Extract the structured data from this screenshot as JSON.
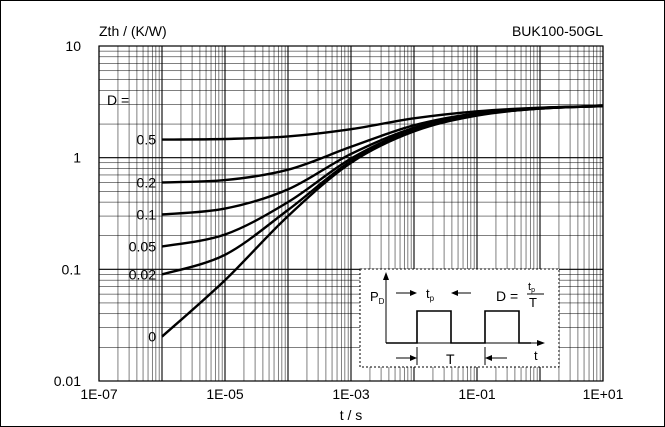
{
  "chart_data": {
    "type": "line",
    "title": "BUK100-50GL",
    "ylabel": "Zth / (K/W)",
    "xlabel": "t / s",
    "x_scale": "log",
    "y_scale": "log",
    "xlim": [
      1e-07,
      10
    ],
    "ylim": [
      0.01,
      10
    ],
    "x_tick_labels": [
      "1E-07",
      "1E-05",
      "1E-03",
      "1E-01",
      "1E+01"
    ],
    "y_tick_labels": [
      "10",
      "1",
      "0.1",
      "0.01"
    ],
    "grid": true,
    "legend_title": "D =",
    "series": [
      {
        "name": "0.5",
        "x": [
          1e-06,
          1e-05,
          0.0001,
          0.001,
          0.01,
          0.1,
          1,
          10
        ],
        "y": [
          1.45,
          1.47,
          1.55,
          1.8,
          2.25,
          2.6,
          2.8,
          2.9
        ]
      },
      {
        "name": "0.2",
        "x": [
          1e-06,
          1e-05,
          0.0001,
          0.001,
          0.01,
          0.1,
          1,
          10
        ],
        "y": [
          0.6,
          0.63,
          0.78,
          1.25,
          1.95,
          2.5,
          2.78,
          2.9
        ]
      },
      {
        "name": "0.1",
        "x": [
          1e-06,
          1e-05,
          0.0001,
          0.001,
          0.01,
          0.1,
          1,
          10
        ],
        "y": [
          0.31,
          0.35,
          0.52,
          1.08,
          1.85,
          2.45,
          2.78,
          2.9
        ]
      },
      {
        "name": "0.05",
        "x": [
          1e-06,
          1e-05,
          0.0001,
          0.001,
          0.01,
          0.1,
          1,
          10
        ],
        "y": [
          0.16,
          0.205,
          0.4,
          0.98,
          1.8,
          2.42,
          2.76,
          2.9
        ]
      },
      {
        "name": "0.02",
        "x": [
          1e-06,
          1e-05,
          0.0001,
          0.001,
          0.01,
          0.1,
          1,
          10
        ],
        "y": [
          0.09,
          0.135,
          0.34,
          0.93,
          1.75,
          2.4,
          2.75,
          2.9
        ]
      },
      {
        "name": "0",
        "x": [
          1e-06,
          1e-05,
          0.0001,
          0.001,
          0.01,
          0.1,
          1,
          10
        ],
        "y": [
          0.025,
          0.08,
          0.3,
          0.9,
          1.72,
          2.38,
          2.75,
          2.9
        ]
      }
    ],
    "inset": {
      "pd_label": "P",
      "pd_sub": "D",
      "tp_label": "t",
      "tp_sub": "p",
      "period_label": "T",
      "time_label": "t",
      "formula_lhs": "D =",
      "formula_num_main": "t",
      "formula_num_sub": "p",
      "formula_den": "T"
    }
  }
}
